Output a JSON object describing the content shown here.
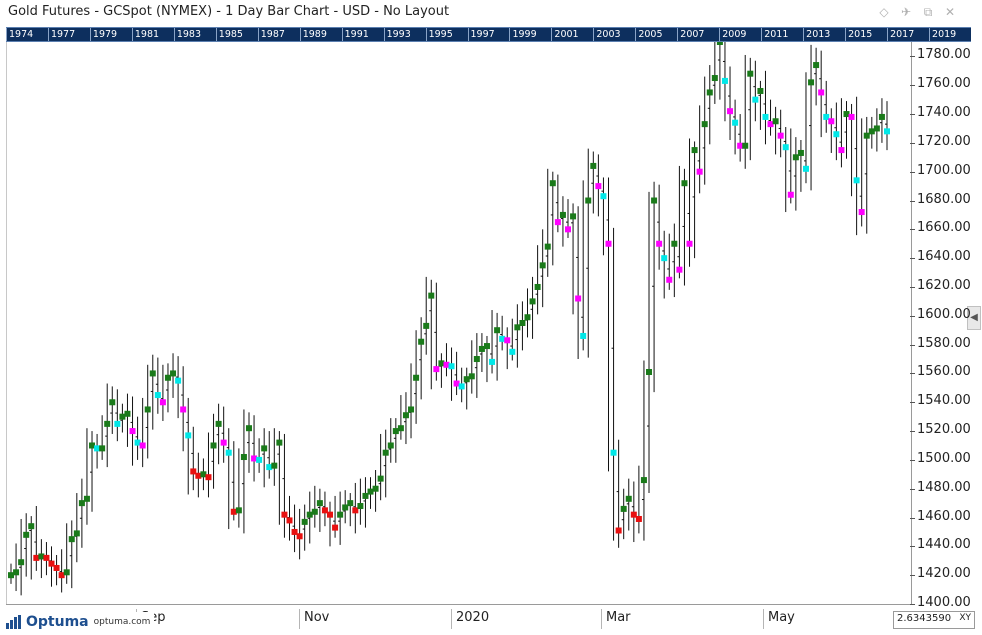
{
  "window": {
    "title": "Gold Futures - GCSpot (NYMEX) - 1 Day Bar Chart - USD - No Layout",
    "buttons": [
      {
        "name": "diamond-icon",
        "glyph": "◇"
      },
      {
        "name": "pin-icon",
        "glyph": "✈"
      },
      {
        "name": "restore-icon",
        "glyph": "⧉"
      },
      {
        "name": "close-icon",
        "glyph": "✕"
      }
    ]
  },
  "overview_years": [
    "1974",
    "1977",
    "1979",
    "1981",
    "1983",
    "1985",
    "1987",
    "1989",
    "1991",
    "1993",
    "1995",
    "1997",
    "1999",
    "2001",
    "2003",
    "2005",
    "2007",
    "2009",
    "2011",
    "2013",
    "2015",
    "2017",
    "2019"
  ],
  "time_labels": [
    "Sep",
    "Nov",
    "2020",
    "Mar",
    "May"
  ],
  "price_ticks": [
    "1780.00",
    "1760.00",
    "1740.00",
    "1720.00",
    "1700.00",
    "1680.00",
    "1660.00",
    "1640.00",
    "1620.00",
    "1600.00",
    "1580.00",
    "1560.00",
    "1540.00",
    "1520.00",
    "1500.00",
    "1480.00",
    "1460.00",
    "1440.00",
    "1420.00",
    "1400.00"
  ],
  "logo": {
    "text": "Optuma",
    "url": "optuma.com"
  },
  "xy": {
    "value": "2.6343590",
    "button": "XY"
  },
  "colors": {
    "green": "#1a7a1a",
    "red": "#e81010",
    "magenta": "#ff00ff",
    "cyan": "#00e8e8",
    "bar": "#111111",
    "overview": "#0d2f5e"
  },
  "chart_data": {
    "type": "bar",
    "ylim": [
      1400,
      1790
    ],
    "series": [
      {
        "values": [
          1420,
          1422,
          1429,
          1448,
          1454,
          1432,
          1433,
          1432,
          1428,
          1425,
          1420,
          1422,
          1445,
          1449,
          1470,
          1473,
          1510,
          1508,
          1508,
          1525,
          1540,
          1525,
          1530,
          1532,
          1520,
          1512,
          1510,
          1535,
          1560,
          1545,
          1540,
          1557,
          1560,
          1555,
          1535,
          1517,
          1492,
          1489,
          1490,
          1488,
          1510,
          1525,
          1512,
          1505,
          1464,
          1465,
          1502,
          1522,
          1501,
          1500,
          1508,
          1495,
          1496,
          1512,
          1462,
          1458,
          1450,
          1447,
          1457,
          1462,
          1464,
          1470,
          1465,
          1462,
          1453,
          1462,
          1467,
          1470,
          1465,
          1468,
          1475,
          1478,
          1480,
          1487,
          1505,
          1510,
          1520,
          1522,
          1531,
          1535,
          1557,
          1582,
          1593,
          1614,
          1563,
          1567,
          1566,
          1565,
          1553,
          1551,
          1556,
          1558,
          1570,
          1577,
          1579,
          1568,
          1590,
          1584,
          1583,
          1575,
          1592,
          1595,
          1599,
          1610,
          1620,
          1635,
          1648,
          1692,
          1665,
          1670,
          1660,
          1669,
          1612,
          1586,
          1680,
          1704,
          1690,
          1683,
          1650,
          1505,
          1451,
          1466,
          1473,
          1462,
          1459,
          1486,
          1561,
          1680,
          1650,
          1640,
          1625,
          1650,
          1632,
          1692,
          1650,
          1715,
          1700,
          1733,
          1755,
          1765,
          1790,
          1763,
          1742,
          1734,
          1718,
          1718,
          1768,
          1750,
          1756,
          1738,
          1733,
          1735,
          1725,
          1717,
          1684,
          1710,
          1713,
          1702,
          1762,
          1774,
          1755,
          1738,
          1735,
          1726,
          1715,
          1740,
          1738,
          1694,
          1672,
          1725,
          1728,
          1730,
          1738,
          1728
        ]
      }
    ]
  }
}
